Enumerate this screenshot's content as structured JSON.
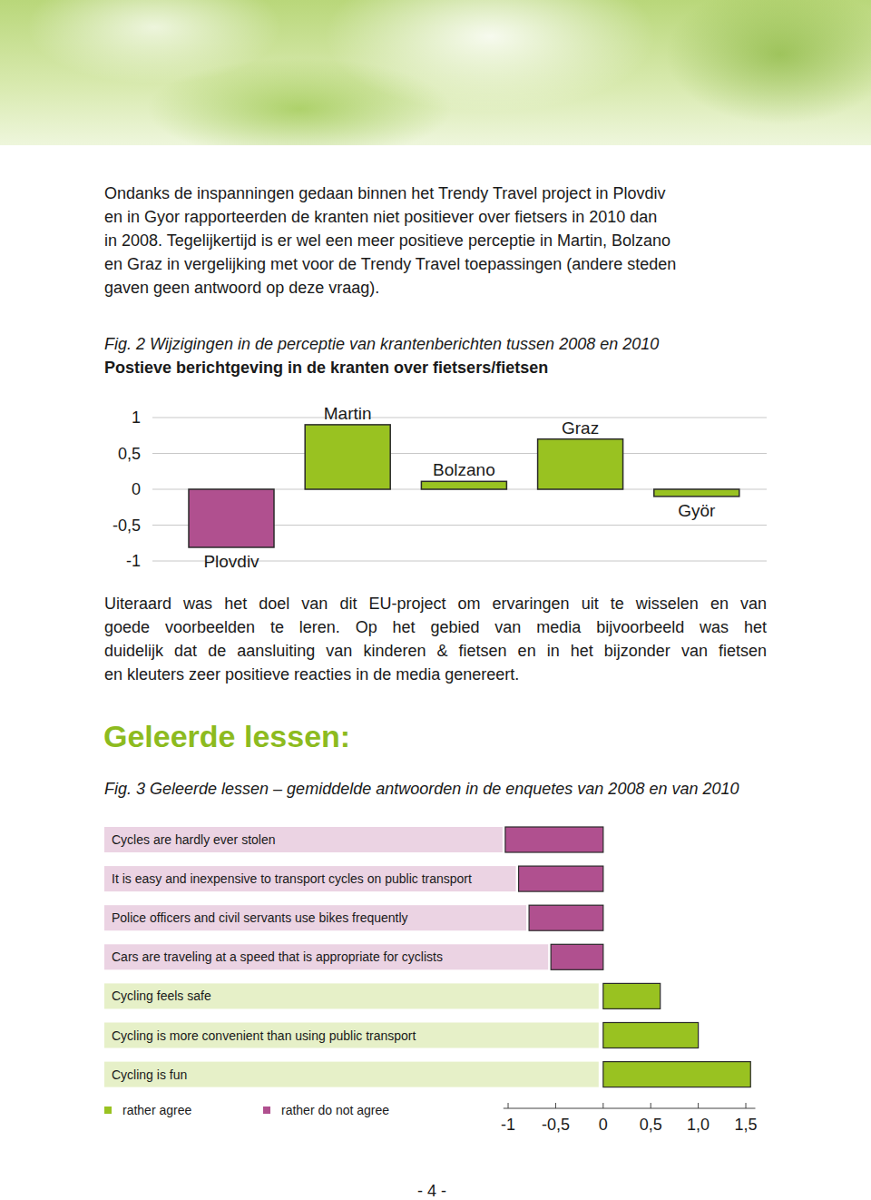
{
  "intro_lines": [
    "Ondanks de inspanningen gedaan binnen het Trendy Travel project in Plovdiv",
    "en in Gyor rapporteerden de kranten niet positiever over fietsers in 2010 dan",
    "in 2008. Tegelijkertijd is er wel een meer positieve perceptie in Martin, Bolzano",
    "en Graz in vergelijking met voor de Trendy Travel toepassingen (andere steden",
    "gaven geen antwoord op deze vraag)."
  ],
  "body_lines": [
    "Uiteraard was het doel van dit EU-project om ervaringen uit te wisselen en van",
    "goede voorbeelden te leren. Op het gebied van media bijvoorbeeld was het",
    "duidelijk dat de aansluiting van kinderen & fietsen en in het bijzonder van fietsen",
    "en kleuters zeer positieve reacties in de media genereert."
  ],
  "section_heading": "Geleerde lessen:",
  "page_number": "- 4 -",
  "chart_data": [
    {
      "type": "bar",
      "title": "Fig. 2 Wijzigingen in de perceptie van krantenberichten tussen 2008 en 2010",
      "subtitle": "Postieve berichtgeving in de kranten over fietsers/fietsen",
      "categories": [
        "Plovdiv",
        "Martin",
        "Bolzano",
        "Graz",
        "Györ"
      ],
      "values": [
        -0.81,
        0.9,
        0.11,
        0.7,
        -0.1
      ],
      "colors": [
        "#b0508f",
        "#99c221",
        "#99c221",
        "#99c221",
        "#99c221"
      ],
      "ylim": [
        -1,
        1
      ],
      "yticks": [
        1,
        {
          "value": 0.5,
          "label": "0,5"
        },
        0,
        {
          "value": -0.5,
          "label": "-0,5"
        },
        -1
      ],
      "grid": true,
      "tick_labels": "y"
    },
    {
      "type": "bar",
      "orientation": "horizontal",
      "title": "Fig. 3 Geleerde lessen – gemiddelde antwoorden in de enquetes van 2008 en van 2010",
      "categories": [
        "Cycles are hardly ever stolen",
        "It is easy and inexpensive to transport cycles on public transport",
        "Police officers and civil servants use bikes frequently",
        "Cars are traveling at a speed that is appropriate for cyclists",
        "Cycling feels safe",
        "Cycling is more convenient than using public transport",
        "Cycling is fun"
      ],
      "series": [
        {
          "name": "rather agree",
          "color": "#99c221",
          "values": [
            null,
            null,
            null,
            null,
            0.6,
            1.0,
            1.55
          ]
        },
        {
          "name": "rather do not agree",
          "color": "#b0508f",
          "values": [
            -1.03,
            -0.89,
            -0.78,
            -0.55,
            null,
            null,
            null
          ]
        }
      ],
      "xlim": [
        -1.05,
        1.6
      ],
      "xticks": [
        -1,
        {
          "value": -0.5,
          "label": "-0,5"
        },
        0,
        {
          "value": 0.5,
          "label": "0,5"
        },
        {
          "value": 1,
          "label": "1,0"
        },
        {
          "value": 1.5,
          "label": "1,5"
        }
      ],
      "grid": false,
      "legend": "bottom-left",
      "tick_labels": "x"
    }
  ]
}
